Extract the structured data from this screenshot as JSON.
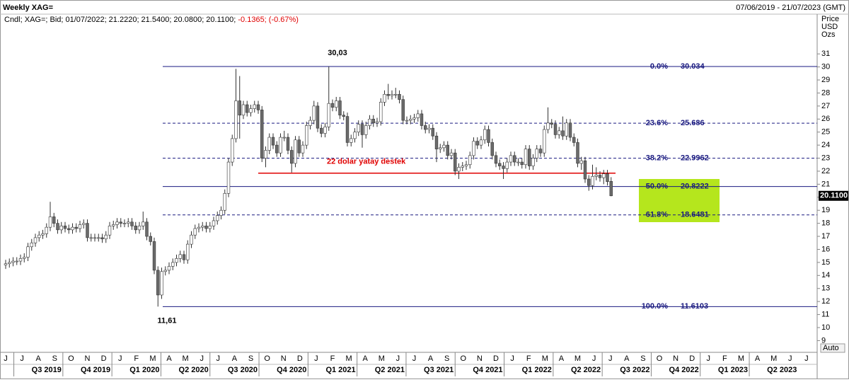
{
  "header": {
    "title": "Weekly XAG=",
    "date_range": "07/06/2019 - 21/07/2023 (GMT)",
    "info": "Cndl; XAG=; Bid; 01/07/2022; 21.2220; 21.5400; 20.0800; 20.1100;",
    "change": "-0.1365; (-0.67%)"
  },
  "chart_data": {
    "type": "candlestick",
    "open": [
      14.8,
      14.9,
      15.0,
      15.1,
      15.1,
      15.3,
      15.4,
      16.2,
      16.5,
      16.9,
      17.1,
      17.2,
      17.7,
      18.5,
      18.0,
      17.5,
      17.8,
      17.6,
      17.5,
      17.7,
      17.6,
      17.9,
      18.0,
      16.9,
      16.9,
      16.9,
      16.9,
      16.8,
      17.1,
      17.8,
      17.9,
      18.1,
      18.0,
      18.0,
      18.1,
      17.8,
      17.5,
      17.8,
      18.1,
      17.0,
      16.6,
      14.4,
      12.5,
      14.3,
      14.4,
      14.7,
      15.0,
      15.3,
      15.6,
      15.2,
      16.4,
      17.1,
      17.6,
      17.7,
      17.8,
      17.6,
      17.8,
      18.2,
      18.6,
      19.0,
      20.3,
      22.7,
      24.5,
      27.4,
      26.3,
      27.1,
      26.5,
      26.8,
      27.1,
      26.7,
      23.0,
      23.6,
      24.6,
      24.0,
      23.4,
      24.6,
      24.6,
      23.6,
      22.6,
      24.4,
      23.4,
      24.0,
      25.5,
      25.9,
      27.0,
      25.3,
      24.9,
      25.4,
      27.2,
      26.9,
      27.4,
      26.3,
      26.2,
      24.2,
      24.5,
      25.0,
      25.6,
      24.8,
      25.5,
      26.0,
      25.7,
      25.8,
      27.3,
      27.9,
      27.8,
      27.9,
      27.9,
      27.5,
      25.9,
      25.9,
      26.0,
      26.1,
      26.4,
      25.5,
      25.2,
      25.3,
      24.7,
      23.7,
      23.8,
      24.0,
      23.2,
      23.4,
      22.0,
      22.3,
      22.4,
      22.5,
      23.2,
      24.3,
      24.0,
      24.4,
      25.2,
      24.2,
      23.2,
      22.6,
      22.4,
      22.2,
      22.7,
      23.2,
      22.7,
      22.7,
      22.5,
      23.7,
      22.4,
      23.0,
      23.7,
      23.4,
      25.2,
      25.7,
      25.6,
      24.8,
      25.1,
      24.7,
      25.7,
      24.6,
      24.2,
      22.6,
      22.8,
      21.4,
      20.9,
      21.6,
      21.7,
      21.5,
      21.8,
      21.22
    ],
    "high": [
      15.2,
      15.3,
      15.4,
      15.4,
      15.6,
      15.7,
      16.5,
      16.8,
      17.2,
      17.4,
      17.5,
      18.0,
      19.65,
      18.8,
      18.3,
      18.1,
      18.1,
      17.9,
      18.0,
      18.0,
      18.2,
      18.3,
      18.3,
      17.2,
      17.2,
      17.2,
      17.2,
      17.4,
      18.1,
      18.2,
      18.4,
      18.4,
      18.3,
      18.4,
      18.4,
      18.1,
      18.1,
      18.9,
      18.4,
      17.3,
      16.9,
      14.7,
      14.6,
      14.7,
      15.0,
      15.3,
      15.6,
      15.9,
      15.9,
      16.7,
      17.4,
      17.9,
      18.0,
      18.1,
      18.1,
      18.1,
      18.5,
      18.9,
      19.3,
      20.6,
      23.0,
      24.8,
      29.85,
      29.3,
      27.4,
      27.4,
      27.1,
      27.4,
      27.4,
      27.0,
      23.9,
      24.9,
      24.9,
      24.3,
      24.9,
      25.1,
      24.9,
      23.9,
      24.7,
      24.7,
      24.3,
      25.8,
      26.2,
      27.4,
      27.3,
      25.6,
      25.7,
      30.03,
      27.5,
      27.7,
      27.7,
      26.6,
      26.5,
      24.8,
      25.3,
      25.9,
      25.9,
      25.8,
      26.3,
      26.3,
      26.1,
      27.6,
      28.2,
      28.7,
      28.2,
      28.4,
      28.2,
      27.8,
      26.2,
      26.3,
      26.4,
      26.7,
      26.7,
      25.8,
      25.6,
      25.6,
      25.0,
      24.1,
      24.3,
      24.3,
      23.7,
      23.7,
      22.6,
      22.7,
      22.8,
      23.5,
      24.6,
      24.6,
      24.7,
      25.5,
      25.5,
      24.5,
      23.5,
      22.9,
      22.7,
      23.0,
      23.5,
      23.5,
      23.0,
      23.0,
      24.0,
      24.0,
      23.3,
      24.0,
      24.0,
      25.5,
      26.9,
      26.0,
      25.9,
      25.4,
      26.2,
      26.0,
      26.0,
      24.9,
      24.5,
      23.1,
      23.1,
      21.7,
      22.5,
      22.3,
      22.0,
      22.1,
      22.1,
      21.54
    ],
    "low": [
      14.5,
      14.6,
      14.7,
      14.8,
      14.8,
      15.0,
      15.1,
      15.9,
      16.2,
      16.6,
      16.8,
      16.9,
      17.4,
      17.7,
      17.2,
      17.2,
      17.3,
      17.2,
      17.2,
      17.3,
      17.3,
      17.6,
      16.6,
      16.6,
      16.6,
      16.6,
      16.5,
      16.5,
      16.8,
      17.5,
      17.6,
      17.7,
      17.7,
      17.7,
      17.5,
      17.2,
      17.2,
      17.5,
      16.7,
      16.3,
      14.1,
      11.61,
      12.2,
      14.0,
      14.1,
      14.4,
      14.7,
      15.0,
      14.9,
      14.9,
      16.1,
      16.8,
      17.3,
      17.4,
      17.3,
      17.3,
      17.5,
      17.9,
      18.3,
      18.7,
      20.0,
      22.4,
      24.2,
      24.5,
      26.0,
      26.2,
      26.2,
      26.5,
      26.4,
      22.7,
      22.3,
      23.3,
      23.7,
      23.1,
      23.1,
      24.3,
      23.3,
      21.9,
      22.3,
      23.1,
      23.1,
      23.7,
      25.2,
      25.6,
      25.0,
      24.6,
      24.6,
      25.1,
      26.6,
      26.6,
      26.0,
      25.9,
      23.9,
      23.9,
      24.2,
      24.7,
      23.8,
      24.5,
      25.2,
      25.4,
      25.4,
      25.5,
      27.0,
      27.5,
      27.5,
      27.6,
      27.2,
      25.6,
      25.6,
      25.6,
      25.7,
      25.8,
      25.2,
      24.9,
      24.9,
      24.4,
      22.7,
      23.4,
      23.5,
      22.9,
      22.9,
      21.7,
      21.4,
      22.0,
      22.1,
      22.2,
      22.9,
      23.7,
      23.7,
      24.1,
      23.9,
      22.9,
      22.3,
      22.1,
      21.4,
      21.9,
      22.4,
      22.4,
      22.4,
      22.2,
      22.2,
      22.1,
      22.1,
      22.7,
      23.1,
      23.1,
      24.9,
      25.3,
      24.5,
      24.5,
      24.4,
      24.4,
      24.3,
      23.9,
      22.3,
      22.1,
      21.1,
      20.5,
      20.6,
      21.3,
      21.2,
      21.0,
      20.9,
      20.08
    ],
    "close": [
      14.9,
      15.0,
      15.1,
      15.1,
      15.3,
      15.4,
      16.2,
      16.5,
      16.9,
      17.1,
      17.2,
      17.7,
      18.5,
      18.0,
      17.5,
      17.8,
      17.6,
      17.5,
      17.7,
      17.6,
      17.9,
      18.0,
      16.9,
      16.9,
      16.9,
      16.9,
      16.8,
      17.1,
      17.8,
      17.9,
      18.1,
      18.0,
      18.0,
      18.1,
      17.8,
      17.5,
      17.8,
      18.1,
      17.0,
      16.6,
      14.4,
      12.5,
      14.3,
      14.4,
      14.7,
      15.0,
      15.3,
      15.6,
      15.2,
      16.4,
      17.1,
      17.6,
      17.7,
      17.8,
      17.6,
      17.8,
      18.2,
      18.6,
      19.0,
      20.3,
      22.7,
      24.5,
      27.4,
      26.3,
      27.1,
      26.5,
      26.8,
      27.1,
      26.7,
      23.0,
      23.6,
      24.6,
      24.0,
      23.4,
      24.6,
      24.6,
      23.6,
      22.6,
      24.4,
      23.4,
      24.0,
      25.5,
      25.9,
      27.0,
      25.3,
      24.9,
      25.4,
      27.2,
      26.9,
      27.4,
      26.3,
      26.2,
      24.2,
      24.5,
      25.0,
      25.6,
      24.8,
      25.5,
      26.0,
      25.7,
      25.8,
      27.3,
      27.9,
      27.8,
      27.9,
      27.9,
      27.5,
      25.9,
      25.9,
      26.0,
      26.1,
      26.4,
      25.5,
      25.2,
      25.3,
      24.7,
      23.7,
      23.8,
      24.0,
      23.2,
      23.4,
      22.0,
      22.3,
      22.4,
      22.5,
      23.2,
      24.3,
      24.0,
      24.4,
      25.2,
      24.2,
      23.2,
      22.6,
      22.4,
      22.2,
      22.7,
      23.2,
      22.7,
      22.7,
      22.5,
      23.7,
      22.4,
      23.0,
      23.7,
      23.4,
      25.2,
      25.7,
      25.6,
      24.8,
      25.1,
      24.7,
      25.7,
      24.6,
      24.2,
      22.6,
      22.8,
      21.4,
      20.9,
      21.6,
      21.7,
      21.5,
      21.8,
      21.2,
      20.11
    ],
    "up_color": "#ffffff",
    "down_color": "#6b6b6b",
    "ylim": [
      8.1,
      34.05
    ],
    "yticks": [
      9,
      10,
      11,
      12,
      13,
      14,
      15,
      16,
      17,
      18,
      19,
      20,
      21,
      22,
      23,
      24,
      25,
      26,
      27,
      28,
      29,
      30,
      31
    ],
    "y_axis_units": [
      "Price",
      "USD",
      "Ozs"
    ],
    "last_price": {
      "value": 20.11,
      "label": "20.1100"
    },
    "month_labels": [
      "J",
      "J",
      "A",
      "S",
      "O",
      "N",
      "D",
      "J",
      "F",
      "M",
      "A",
      "M",
      "J",
      "J",
      "A",
      "S",
      "O",
      "N",
      "D",
      "J",
      "F",
      "M",
      "A",
      "M",
      "J",
      "J",
      "A",
      "S",
      "O",
      "N",
      "D",
      "J",
      "F",
      "M",
      "A",
      "M",
      "J",
      "J",
      "A",
      "S",
      "O",
      "N",
      "D",
      "J",
      "F",
      "M",
      "A",
      "M",
      "J",
      "J"
    ],
    "quarter_labels": [
      "Q3 2019",
      "Q4 2019",
      "Q1 2020",
      "Q2 2020",
      "Q3 2020",
      "Q4 2020",
      "Q1 2021",
      "Q2 2021",
      "Q3 2021",
      "Q4 2021",
      "Q1 2022",
      "Q2 2022",
      "Q3 2022",
      "Q4 2022",
      "Q1 2023",
      "Q2 2023"
    ],
    "fibonacci": [
      {
        "percent": "0.0%",
        "value": 30.034,
        "dashed": false
      },
      {
        "percent": "23.6%",
        "value": 25.686,
        "dashed": true
      },
      {
        "percent": "38.2%",
        "value": 22.9962,
        "dashed": true
      },
      {
        "percent": "50.0%",
        "value": 20.8222,
        "dashed": false
      },
      {
        "percent": "61.8%",
        "value": 18.6481,
        "dashed": true
      },
      {
        "percent": "100.0%",
        "value": 11.6103,
        "dashed": false
      }
    ],
    "fib_color": "#1a1a80",
    "support": {
      "value": 21.85,
      "label": "22 dolar yatay destek",
      "color": "#e00000"
    },
    "annotations": [
      {
        "text": "30,03",
        "value": 30.03
      },
      {
        "text": "11,61",
        "value": 11.61
      }
    ],
    "auto_button": "Auto"
  }
}
